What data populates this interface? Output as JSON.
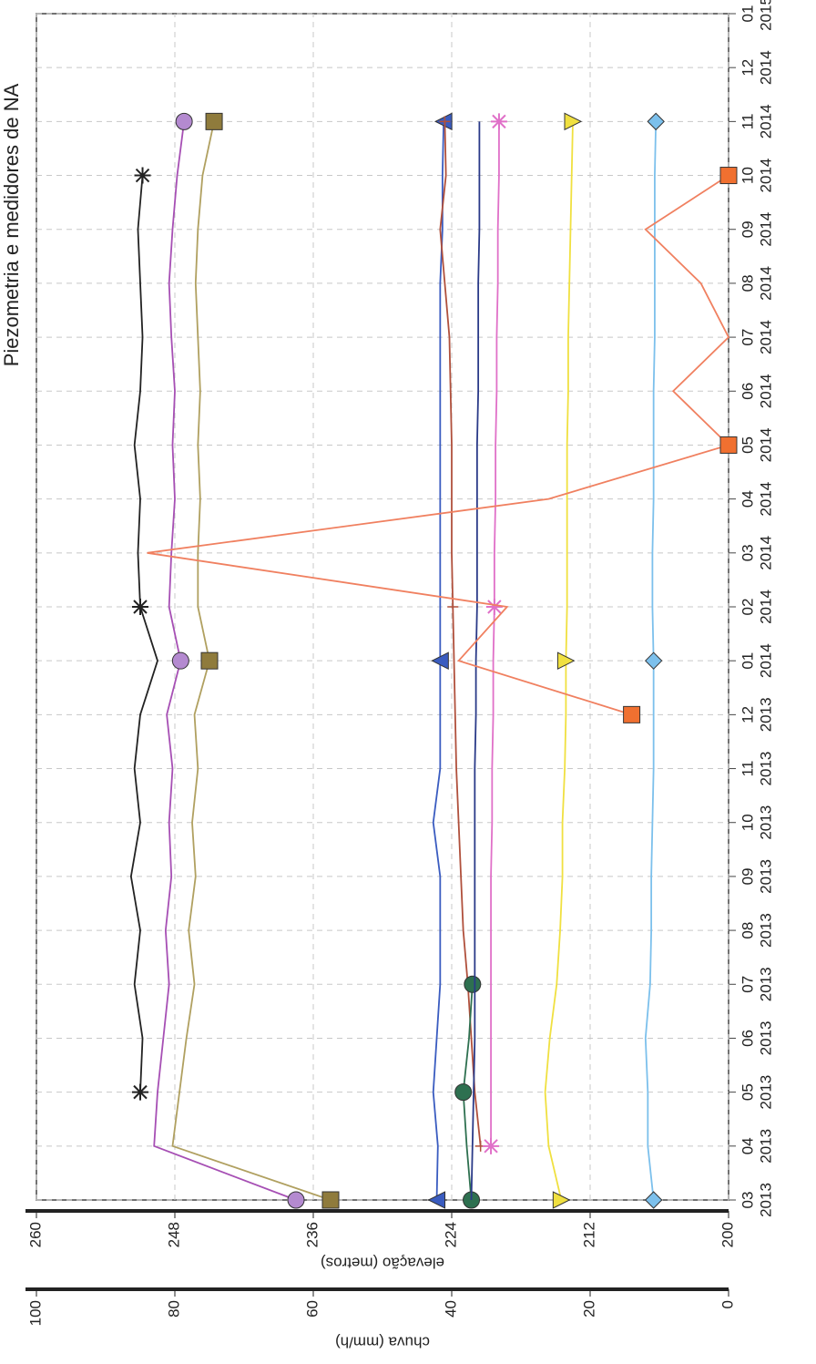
{
  "chart_data": {
    "type": "line",
    "title": "Piezometria e medidores de NA",
    "ylabel": "elevação (metros)",
    "y2label": "chuva (mm/h)",
    "x": [
      "2013-03",
      "2013-04",
      "2013-05",
      "2013-06",
      "2013-07",
      "2013-08",
      "2013-09",
      "2013-10",
      "2013-11",
      "2013-12",
      "2014-01",
      "2014-02",
      "2014-03",
      "2014-04",
      "2014-05",
      "2014-06",
      "2014-07",
      "2014-08",
      "2014-09",
      "2014-10",
      "2014-11",
      "2014-12",
      "2015-01"
    ],
    "xlim": [
      "2013-03",
      "2015-01"
    ],
    "xticks": [
      {
        "value": "2013-03",
        "label": [
          "03",
          "2013"
        ]
      },
      {
        "value": "2013-04",
        "label": [
          "04",
          "2013"
        ]
      },
      {
        "value": "2013-05",
        "label": [
          "05",
          "2013"
        ]
      },
      {
        "value": "2013-06",
        "label": [
          "06",
          "2013"
        ]
      },
      {
        "value": "2013-07",
        "label": [
          "07",
          "2013"
        ]
      },
      {
        "value": "2013-08",
        "label": [
          "08",
          "2013"
        ]
      },
      {
        "value": "2013-09",
        "label": [
          "09",
          "2013"
        ]
      },
      {
        "value": "2013-10",
        "label": [
          "10",
          "2013"
        ]
      },
      {
        "value": "2013-11",
        "label": [
          "11",
          "2013"
        ]
      },
      {
        "value": "2013-12",
        "label": [
          "12",
          "2013"
        ]
      },
      {
        "value": "2014-01",
        "label": [
          "01",
          "2014"
        ]
      },
      {
        "value": "2014-02",
        "label": [
          "02",
          "2014"
        ]
      },
      {
        "value": "2014-03",
        "label": [
          "03",
          "2014"
        ]
      },
      {
        "value": "2014-04",
        "label": [
          "04",
          "2014"
        ]
      },
      {
        "value": "2014-05",
        "label": [
          "05",
          "2014"
        ]
      },
      {
        "value": "2014-06",
        "label": [
          "06",
          "2014"
        ]
      },
      {
        "value": "2014-07",
        "label": [
          "07",
          "2014"
        ]
      },
      {
        "value": "2014-08",
        "label": [
          "08",
          "2014"
        ]
      },
      {
        "value": "2014-09",
        "label": [
          "09",
          "2014"
        ]
      },
      {
        "value": "2014-10",
        "label": [
          "10",
          "2014"
        ]
      },
      {
        "value": "2014-11",
        "label": [
          "11",
          "2014"
        ]
      },
      {
        "value": "2014-12",
        "label": [
          "12",
          "2014"
        ]
      },
      {
        "value": "2015-01",
        "label": [
          "01",
          "2015"
        ]
      }
    ],
    "ylim": [
      200,
      260
    ],
    "yticks": [
      200,
      212,
      224,
      236,
      248,
      260
    ],
    "y2lim": [
      0,
      100
    ],
    "y2ticks": [
      0,
      20,
      40,
      60,
      80,
      100
    ],
    "grid": true,
    "series": [
      {
        "color": "#222222",
        "marker": "star",
        "values": [
          null,
          null,
          251,
          250.8,
          251.5,
          251,
          251.8,
          251,
          251.5,
          251,
          249.5,
          251,
          251.2,
          251,
          251.5,
          251,
          250.8,
          251,
          251.2,
          250.8,
          null,
          null,
          null
        ]
      },
      {
        "color": "#a64fb4",
        "marker": "circle",
        "marker_color": "#b48ad0",
        "values": [
          237.5,
          249.8,
          249.5,
          249,
          248.5,
          248.8,
          248.3,
          248.5,
          248.2,
          248.7,
          247.5,
          248.5,
          248.3,
          248,
          248.2,
          248,
          248.3,
          248.5,
          248.2,
          247.8,
          247.2,
          null,
          null
        ]
      },
      {
        "color": "#b0a060",
        "marker": "square",
        "marker_color": "#8f7b3c",
        "values": [
          234.5,
          248.2,
          247.6,
          247,
          246.3,
          246.8,
          246.2,
          246.5,
          246,
          246.3,
          245,
          246,
          246,
          245.8,
          246,
          245.8,
          246,
          246.2,
          246,
          245.6,
          244.6,
          null,
          null
        ]
      },
      {
        "color": "#3a5cc0",
        "marker": "triangle-up",
        "values": [
          225.3,
          225.2,
          225.6,
          225.3,
          225,
          225,
          225,
          225.6,
          225,
          225,
          225,
          225,
          225,
          225,
          225,
          225,
          225,
          225,
          224.8,
          224.8,
          224.7,
          null,
          null
        ]
      },
      {
        "color": "#b0503c",
        "marker": "plus",
        "values": [
          null,
          221.5,
          222,
          222.3,
          222.6,
          223,
          223.2,
          223.4,
          223.6,
          223.7,
          223.8,
          223.9,
          224,
          224,
          224,
          224.1,
          224.2,
          224.6,
          225,
          224.5,
          224.6,
          null,
          null
        ]
      },
      {
        "color": "#2e7050",
        "marker": "circle",
        "values": [
          222.3,
          222.7,
          223,
          222.5,
          222.2,
          null,
          null,
          null,
          null,
          null,
          null,
          null,
          null,
          null,
          null,
          null,
          null,
          null,
          null,
          null,
          null,
          null,
          null
        ]
      },
      {
        "color": "#2a3a88",
        "marker": "none",
        "values": [
          222.3,
          222.2,
          222.1,
          222,
          222,
          222,
          222,
          222,
          222,
          221.9,
          221.9,
          221.8,
          221.8,
          221.8,
          221.8,
          221.7,
          221.7,
          221.7,
          221.6,
          221.6,
          221.6,
          null,
          null
        ]
      },
      {
        "color": "#e070c8",
        "marker": "star",
        "values": [
          null,
          220.6,
          220.6,
          220.6,
          220.6,
          220.6,
          220.6,
          220.5,
          220.5,
          220.4,
          220.4,
          220.3,
          220.3,
          220.2,
          220.2,
          220.1,
          220.1,
          220,
          220,
          219.9,
          219.9,
          null,
          null
        ]
      },
      {
        "color": "#f0e040",
        "marker": "triangle-down",
        "values": [
          214.5,
          215.6,
          215.9,
          215.5,
          214.9,
          214.6,
          214.4,
          214.4,
          214.2,
          214.1,
          214.1,
          214,
          214,
          214,
          214,
          213.9,
          213.9,
          213.8,
          213.7,
          213.6,
          213.5,
          null,
          null
        ]
      },
      {
        "color": "#7cc0ec",
        "marker": "diamond",
        "values": [
          206.5,
          207,
          207,
          207.2,
          206.8,
          206.7,
          206.7,
          206.6,
          206.5,
          206.5,
          206.5,
          206.6,
          206.6,
          206.5,
          206.5,
          206.5,
          206.4,
          206.4,
          206.4,
          206.4,
          206.3,
          null,
          null
        ]
      },
      {
        "color": "#f08060",
        "marker": "square",
        "marker_color": "#f07030",
        "axis": "y2",
        "values": [
          null,
          null,
          null,
          null,
          null,
          null,
          null,
          null,
          null,
          14,
          39,
          32,
          84,
          26,
          0,
          8,
          0,
          4,
          12,
          0,
          null,
          null,
          null
        ]
      }
    ]
  }
}
